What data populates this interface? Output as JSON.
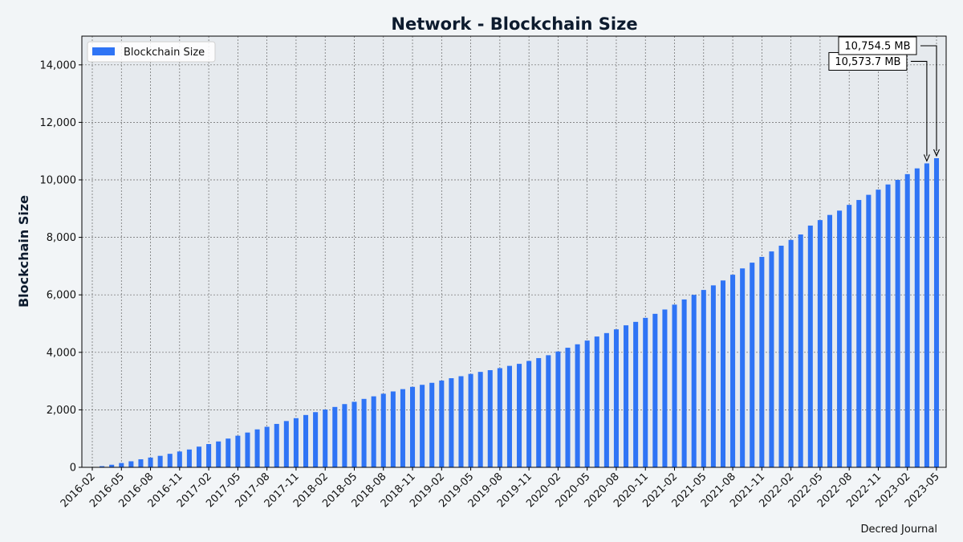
{
  "chart_data": {
    "type": "bar",
    "title": "Network - Blockchain Size",
    "xlabel": "",
    "ylabel": "Blockchain Size",
    "ylim": [
      0,
      15000
    ],
    "y_ticks": [
      0,
      2000,
      4000,
      6000,
      8000,
      10000,
      12000,
      14000
    ],
    "y_tick_labels": [
      "0",
      "2,000",
      "4,000",
      "6,000",
      "8,000",
      "10,000",
      "12,000",
      "14,000"
    ],
    "x_tick_labels": [
      "2016-02",
      "2016-05",
      "2016-08",
      "2016-11",
      "2017-02",
      "2017-05",
      "2017-08",
      "2017-11",
      "2018-02",
      "2018-05",
      "2018-08",
      "2018-11",
      "2019-02",
      "2019-05",
      "2019-08",
      "2019-11",
      "2020-02",
      "2020-05",
      "2020-08",
      "2020-11",
      "2021-02",
      "2021-05",
      "2021-08",
      "2021-11",
      "2022-02",
      "2022-05",
      "2022-08",
      "2022-11",
      "2023-02",
      "2023-05"
    ],
    "grid": true,
    "legend_position": "top-left",
    "color": "#2f74f5",
    "series": [
      {
        "name": "Blockchain Size",
        "x": [
          "2016-02",
          "2016-03",
          "2016-04",
          "2016-05",
          "2016-06",
          "2016-07",
          "2016-08",
          "2016-09",
          "2016-10",
          "2016-11",
          "2016-12",
          "2017-01",
          "2017-02",
          "2017-03",
          "2017-04",
          "2017-05",
          "2017-06",
          "2017-07",
          "2017-08",
          "2017-09",
          "2017-10",
          "2017-11",
          "2017-12",
          "2018-01",
          "2018-02",
          "2018-03",
          "2018-04",
          "2018-05",
          "2018-06",
          "2018-07",
          "2018-08",
          "2018-09",
          "2018-10",
          "2018-11",
          "2018-12",
          "2019-01",
          "2019-02",
          "2019-03",
          "2019-04",
          "2019-05",
          "2019-06",
          "2019-07",
          "2019-08",
          "2019-09",
          "2019-10",
          "2019-11",
          "2019-12",
          "2020-01",
          "2020-02",
          "2020-03",
          "2020-04",
          "2020-05",
          "2020-06",
          "2020-07",
          "2020-08",
          "2020-09",
          "2020-10",
          "2020-11",
          "2020-12",
          "2021-01",
          "2021-02",
          "2021-03",
          "2021-04",
          "2021-05",
          "2021-06",
          "2021-07",
          "2021-08",
          "2021-09",
          "2021-10",
          "2021-11",
          "2021-12",
          "2022-01",
          "2022-02",
          "2022-03",
          "2022-04",
          "2022-05",
          "2022-06",
          "2022-07",
          "2022-08",
          "2022-09",
          "2022-10",
          "2022-11",
          "2022-12",
          "2023-01",
          "2023-02",
          "2023-03",
          "2023-04",
          "2023-05"
        ],
        "values": [
          10,
          40,
          90,
          150,
          210,
          280,
          340,
          400,
          470,
          550,
          620,
          720,
          810,
          900,
          1000,
          1100,
          1210,
          1320,
          1410,
          1510,
          1610,
          1710,
          1820,
          1920,
          2010,
          2100,
          2200,
          2280,
          2380,
          2470,
          2560,
          2640,
          2720,
          2800,
          2870,
          2940,
          3020,
          3100,
          3170,
          3250,
          3320,
          3380,
          3450,
          3530,
          3600,
          3700,
          3800,
          3900,
          4030,
          4160,
          4280,
          4410,
          4550,
          4670,
          4800,
          4940,
          5060,
          5200,
          5340,
          5490,
          5660,
          5840,
          6000,
          6170,
          6330,
          6500,
          6700,
          6920,
          7120,
          7320,
          7510,
          7710,
          7910,
          8100,
          8410,
          8600,
          8780,
          8930,
          9130,
          9300,
          9480,
          9660,
          9840,
          10000,
          10200,
          10400,
          10573.7,
          10754.5
        ]
      }
    ],
    "annotations": [
      {
        "text": "10,573.7 MB",
        "x": "2023-04",
        "value": 10573.7
      },
      {
        "text": "10,754.5 MB",
        "x": "2023-05",
        "value": 10754.5
      }
    ],
    "source": "Decred Journal"
  }
}
